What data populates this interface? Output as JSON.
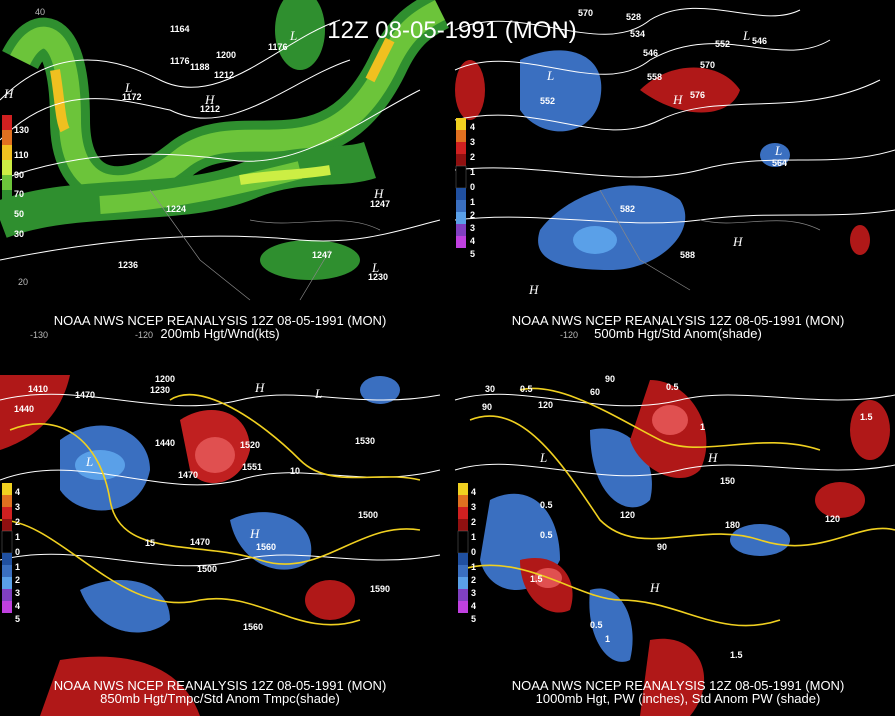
{
  "title": "12Z 08-05-1991 (MON)",
  "panels": [
    {
      "caption": "NOAA NWS NCEP REANALYSIS 12Z 08-05-1991 (MON)",
      "subtitle": "200mb Hgt/Wnd(kts)",
      "legend": [
        "130",
        "110",
        "90",
        "70",
        "50",
        "30"
      ],
      "labels": [
        "1164",
        "1176",
        "1200",
        "1176",
        "1188",
        "1212",
        "1172",
        "1212",
        "1224",
        "1247",
        "1236",
        "1247",
        "1230",
        "H",
        "H",
        "H",
        "L",
        "L",
        "L",
        "-130",
        "-120",
        "20",
        "40"
      ]
    },
    {
      "caption": "NOAA NWS NCEP REANALYSIS 12Z 08-05-1991 (MON)",
      "subtitle": "500mb Hgt/Std Anom(shade)",
      "legend": [
        "4",
        "3",
        "2",
        "1",
        "0",
        "1",
        "2",
        "3",
        "4",
        "5"
      ],
      "labels": [
        "570",
        "528",
        "534",
        "546",
        "552",
        "558",
        "570",
        "576",
        "552",
        "582",
        "588",
        "564",
        "546",
        "H",
        "H",
        "H",
        "L",
        "L",
        "L",
        "-120"
      ]
    },
    {
      "caption": "NOAA NWS NCEP REANALYSIS 12Z 08-05-1991 (MON)",
      "subtitle": "850mb Hgt/Tmpc/Std Anom Tmpc(shade)",
      "legend": [
        "4",
        "3",
        "2",
        "1",
        "0",
        "1",
        "2",
        "3",
        "4",
        "5"
      ],
      "labels": [
        "1410",
        "1470",
        "1200",
        "1230",
        "1440",
        "1440",
        "1470",
        "1520",
        "1530",
        "1551",
        "1500",
        "1470",
        "1560",
        "1500",
        "1590",
        "1560",
        "10",
        "15",
        "H",
        "H",
        "L",
        "L"
      ]
    },
    {
      "caption": "NOAA NWS NCEP REANALYSIS 12Z 08-05-1991 (MON)",
      "subtitle": "1000mb Hgt, PW (inches), Std Anom PW (shade)",
      "legend": [
        "4",
        "3",
        "2",
        "1",
        "0",
        "1",
        "2",
        "3",
        "4",
        "5"
      ],
      "labels": [
        "30",
        "90",
        "0.5",
        "120",
        "60",
        "90",
        "0.5",
        "1.5",
        "1",
        "0.5",
        "0.5",
        "120",
        "90",
        "180",
        "150",
        "1.5",
        "1",
        "0.5",
        "120",
        "1.5",
        "H",
        "H",
        "L"
      ]
    }
  ]
}
